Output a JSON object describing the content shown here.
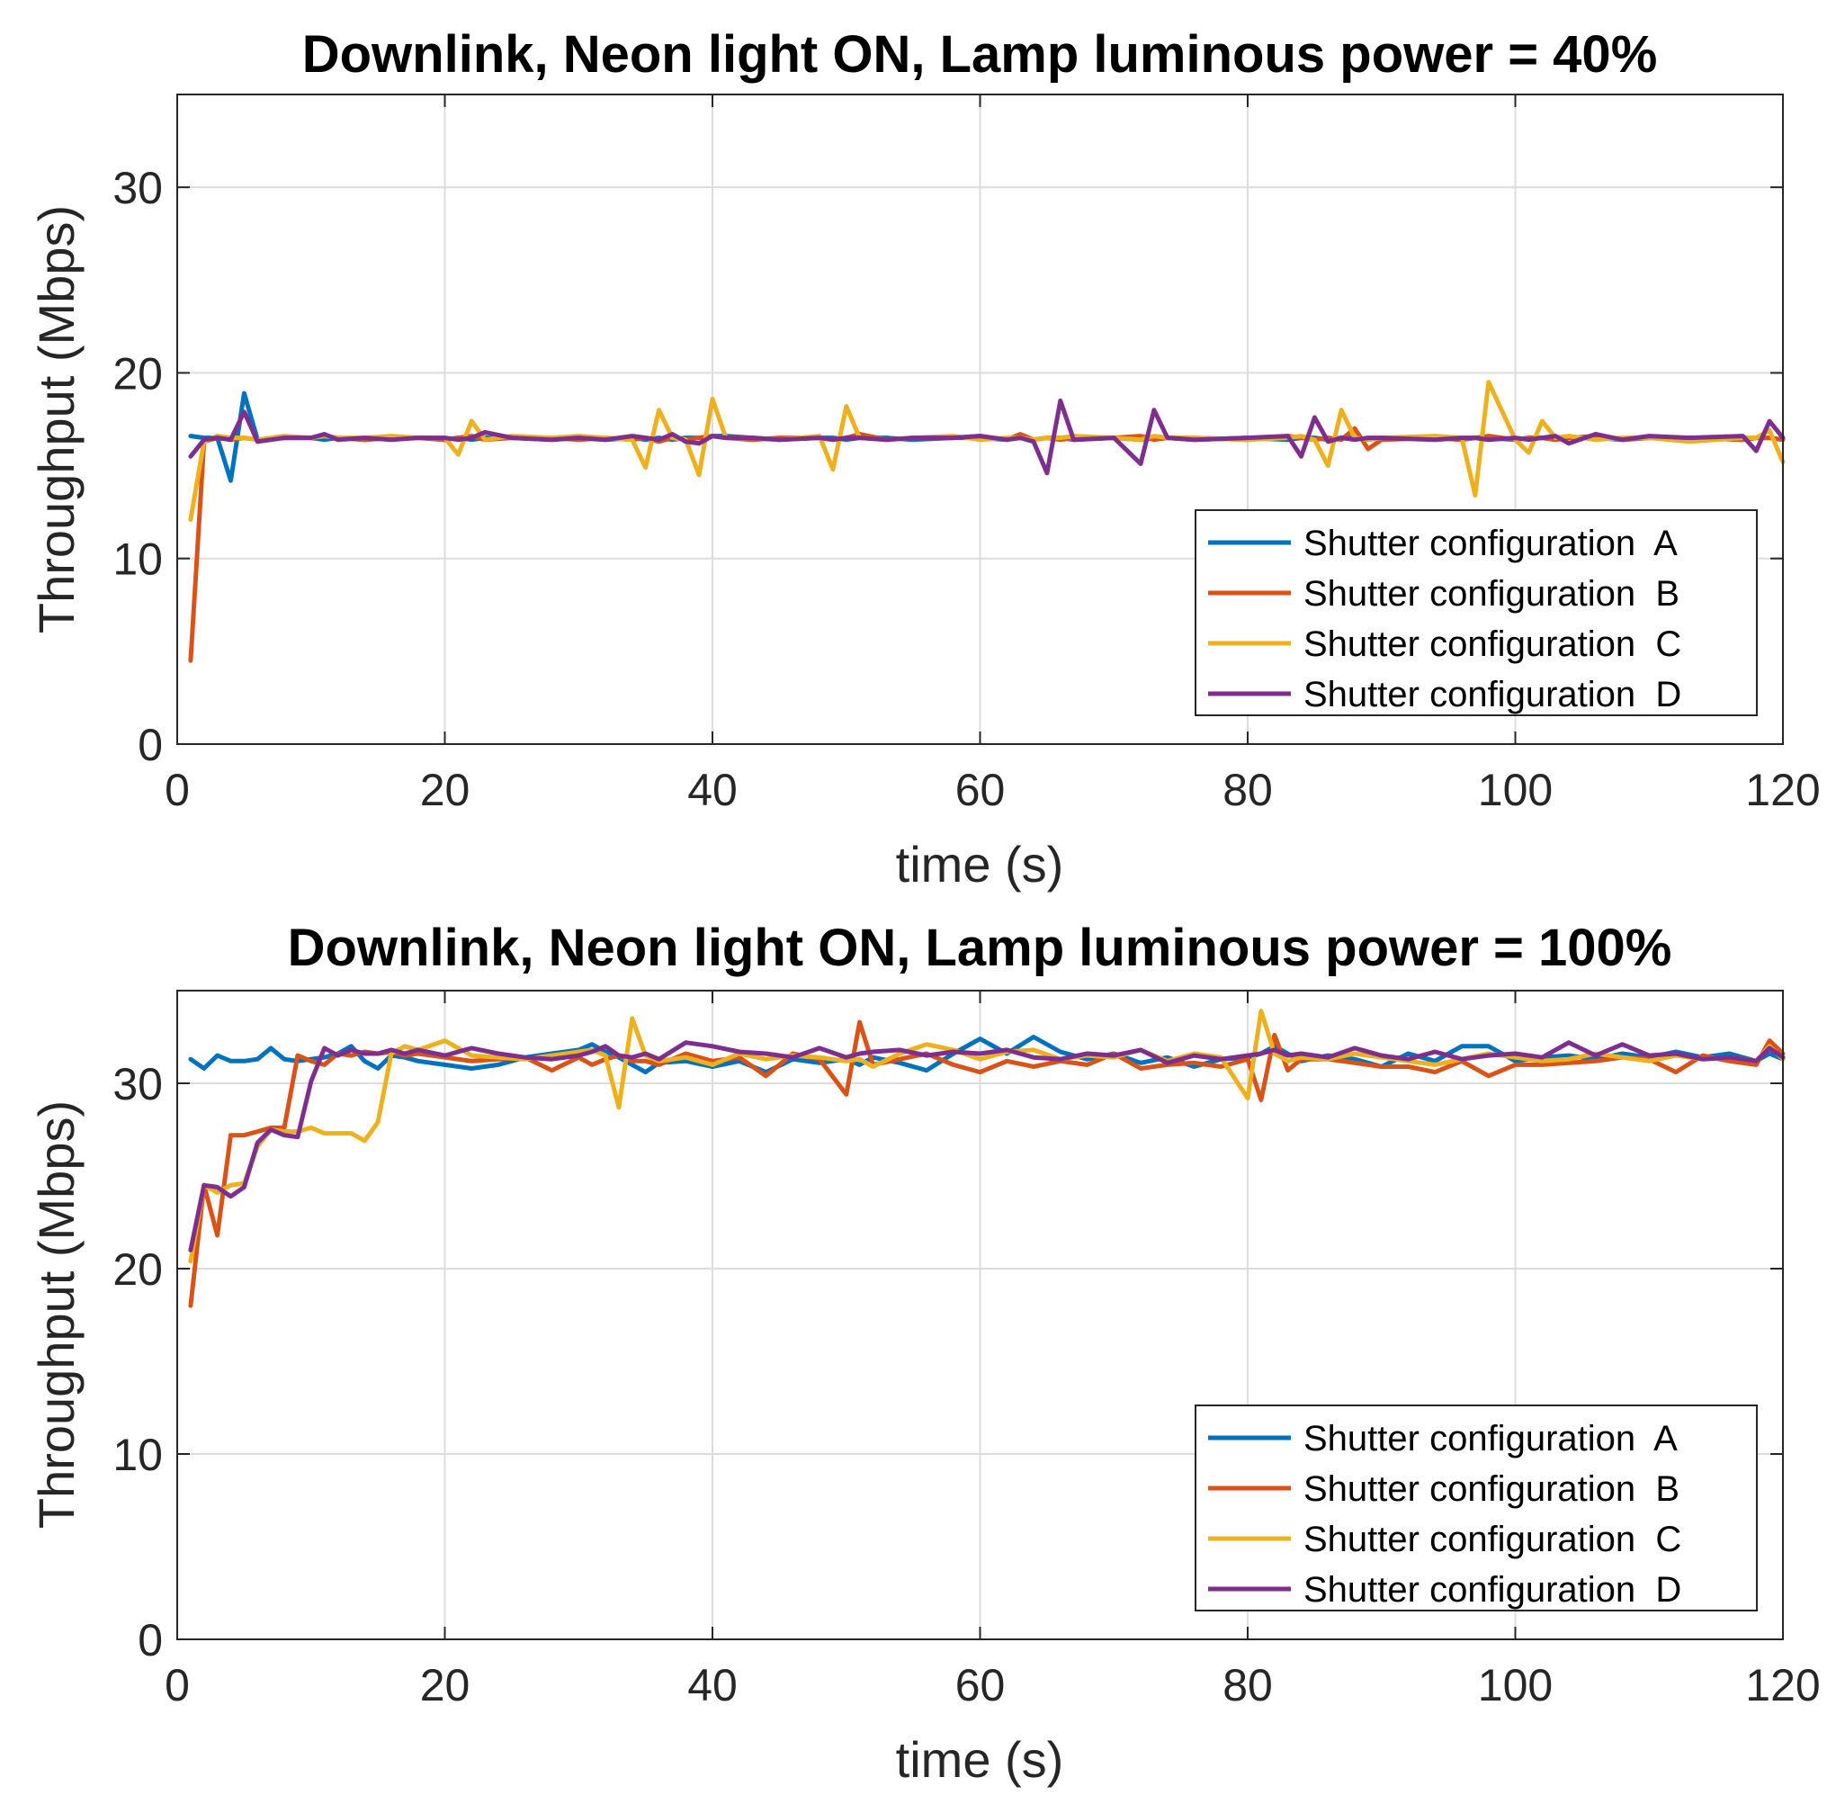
{
  "chart_data": [
    {
      "type": "line",
      "title": "Downlink, Neon light ON, Lamp luminous power =  40%",
      "xlabel": "time (s)",
      "ylabel": "Throughput (Mbps)",
      "xlim": [
        0,
        120
      ],
      "ylim": [
        0,
        35
      ],
      "xticks": [
        0,
        20,
        40,
        60,
        80,
        100,
        120
      ],
      "yticks": [
        0,
        10,
        20,
        30
      ],
      "grid": true,
      "legend_position": "bottom-right",
      "x": [
        1,
        2,
        3,
        4,
        5,
        6,
        8,
        10,
        11,
        12,
        14,
        16,
        18,
        20,
        21,
        22,
        23,
        25,
        28,
        30,
        32,
        34,
        35,
        36,
        37,
        38,
        39,
        40,
        41,
        43,
        45,
        48,
        49,
        50,
        51,
        53,
        55,
        58,
        60,
        62,
        63,
        64,
        65,
        66,
        67,
        70,
        72,
        73,
        74,
        76,
        80,
        83,
        84,
        85,
        86,
        87,
        88,
        89,
        90,
        94,
        96,
        97,
        98,
        100,
        101,
        102,
        103,
        104,
        106,
        108,
        110,
        113,
        117,
        118,
        119,
        120
      ],
      "series": [
        {
          "name": "Shutter configuration  A",
          "color": "#0072BD",
          "values": [
            16.6,
            16.5,
            16.5,
            14.2,
            18.9,
            16.4,
            16.5,
            16.5,
            16.4,
            16.5,
            16.4,
            16.5,
            16.5,
            16.4,
            16.5,
            16.4,
            16.5,
            16.5,
            16.4,
            16.5,
            16.4,
            16.5,
            16.4,
            16.5,
            16.4,
            16.5,
            16.5,
            16.6,
            16.6,
            16.5,
            16.4,
            16.5,
            16.5,
            16.4,
            16.5,
            16.5,
            16.4,
            16.5,
            16.5,
            16.4,
            16.5,
            16.4,
            16.5,
            16.5,
            16.4,
            16.5,
            16.4,
            16.5,
            16.5,
            16.4,
            16.5,
            16.4,
            16.5,
            16.5,
            16.4,
            16.5,
            16.5,
            16.4,
            16.5,
            16.5,
            16.4,
            16.5,
            16.5,
            16.4,
            16.5,
            16.5,
            16.4,
            16.5,
            16.5,
            16.4,
            16.5,
            16.5,
            16.4,
            16.5,
            16.5,
            16.4
          ]
        },
        {
          "name": "Shutter configuration  B",
          "color": "#D95319",
          "values": [
            4.5,
            16.3,
            16.5,
            16.4,
            16.5,
            16.4,
            16.5,
            16.5,
            16.6,
            16.5,
            16.4,
            16.5,
            16.5,
            16.4,
            16.5,
            16.6,
            16.4,
            16.5,
            16.5,
            16.4,
            16.5,
            16.4,
            16.5,
            16.3,
            16.5,
            16.4,
            16.5,
            16.6,
            16.5,
            16.4,
            16.5,
            16.5,
            16.4,
            16.5,
            16.7,
            16.4,
            16.5,
            16.5,
            16.6,
            16.4,
            16.7,
            16.4,
            16.5,
            16.4,
            16.5,
            16.5,
            16.6,
            16.4,
            16.5,
            16.5,
            16.4,
            16.6,
            16.5,
            16.4,
            16.5,
            16.4,
            17.0,
            15.9,
            16.4,
            16.5,
            16.4,
            16.5,
            16.6,
            16.4,
            16.5,
            16.5,
            16.4,
            16.5,
            16.6,
            16.4,
            16.5,
            16.5,
            16.4,
            16.5,
            16.5,
            16.4
          ]
        },
        {
          "name": "Shutter configuration  C",
          "color": "#EDB120",
          "values": [
            12.1,
            16.3,
            16.6,
            16.5,
            16.5,
            16.4,
            16.6,
            16.5,
            16.6,
            16.5,
            16.5,
            16.6,
            16.5,
            16.5,
            15.6,
            17.4,
            16.4,
            16.6,
            16.5,
            16.6,
            16.5,
            16.4,
            14.9,
            18.0,
            16.5,
            16.4,
            14.5,
            18.6,
            16.5,
            16.5,
            16.4,
            16.6,
            14.8,
            18.2,
            16.5,
            16.4,
            16.5,
            16.6,
            16.4,
            16.5,
            16.5,
            16.4,
            16.5,
            16.5,
            16.6,
            16.5,
            16.4,
            16.6,
            16.5,
            16.5,
            16.4,
            16.5,
            16.6,
            16.4,
            15.0,
            18.0,
            16.5,
            16.4,
            16.5,
            16.6,
            16.5,
            13.4,
            19.5,
            16.4,
            15.7,
            17.4,
            16.5,
            16.6,
            16.4,
            16.5,
            16.5,
            16.3,
            16.5,
            16.5,
            16.9,
            15.2
          ]
        },
        {
          "name": "Shutter configuration  D",
          "color": "#7E2F8E",
          "values": [
            15.5,
            16.4,
            16.5,
            16.4,
            17.9,
            16.3,
            16.5,
            16.5,
            16.7,
            16.4,
            16.5,
            16.4,
            16.5,
            16.5,
            16.4,
            16.5,
            16.8,
            16.5,
            16.4,
            16.5,
            16.4,
            16.6,
            16.5,
            16.4,
            16.7,
            16.3,
            16.2,
            16.6,
            16.5,
            16.5,
            16.4,
            16.5,
            16.4,
            16.5,
            16.5,
            16.4,
            16.5,
            16.5,
            16.6,
            16.4,
            16.5,
            16.3,
            14.6,
            18.5,
            16.4,
            16.5,
            15.1,
            18.0,
            16.5,
            16.4,
            16.5,
            16.6,
            15.5,
            17.6,
            16.3,
            16.5,
            16.4,
            16.5,
            16.5,
            16.4,
            16.5,
            16.5,
            16.4,
            16.5,
            16.4,
            16.5,
            16.6,
            16.2,
            16.7,
            16.4,
            16.6,
            16.5,
            16.6,
            15.8,
            17.4,
            16.5
          ]
        }
      ]
    },
    {
      "type": "line",
      "title": "Downlink, Neon light ON, Lamp luminous power =  100%",
      "xlabel": "time (s)",
      "ylabel": "Throughput (Mbps)",
      "xlim": [
        0,
        120
      ],
      "ylim": [
        0,
        35
      ],
      "xticks": [
        0,
        20,
        40,
        60,
        80,
        100,
        120
      ],
      "yticks": [
        0,
        10,
        20,
        30
      ],
      "grid": true,
      "legend_position": "bottom-right",
      "x": [
        1,
        2,
        3,
        4,
        5,
        6,
        7,
        8,
        9,
        10,
        11,
        12,
        13,
        14,
        15,
        16,
        17,
        18,
        20,
        22,
        24,
        26,
        28,
        30,
        31,
        32,
        33,
        34,
        35,
        36,
        38,
        40,
        42,
        44,
        46,
        48,
        50,
        51,
        52,
        54,
        56,
        58,
        60,
        62,
        64,
        66,
        68,
        70,
        72,
        74,
        76,
        78,
        80,
        81,
        82,
        83,
        84,
        86,
        88,
        90,
        92,
        94,
        96,
        98,
        100,
        102,
        104,
        106,
        108,
        110,
        112,
        114,
        116,
        118,
        119,
        120
      ],
      "series": [
        {
          "name": "Shutter configuration  A",
          "color": "#0072BD",
          "values": [
            31.3,
            30.8,
            31.5,
            31.2,
            31.2,
            31.3,
            31.9,
            31.3,
            31.2,
            31.3,
            31.4,
            31.6,
            32.0,
            31.2,
            30.8,
            31.5,
            31.4,
            31.2,
            31.0,
            30.8,
            31.0,
            31.4,
            31.6,
            31.8,
            32.1,
            31.7,
            31.4,
            31.0,
            30.6,
            31.1,
            31.2,
            30.9,
            31.2,
            30.6,
            31.3,
            31.1,
            31.3,
            31.0,
            31.4,
            31.1,
            30.7,
            31.6,
            32.4,
            31.6,
            32.5,
            31.7,
            31.3,
            31.6,
            31.1,
            31.4,
            30.9,
            31.3,
            31.4,
            31.6,
            32.0,
            31.6,
            31.2,
            31.5,
            31.3,
            30.9,
            31.6,
            31.2,
            32.0,
            32.0,
            31.2,
            31.4,
            31.5,
            31.3,
            31.6,
            31.4,
            31.7,
            31.4,
            31.6,
            31.2,
            31.6,
            31.3
          ]
        },
        {
          "name": "Shutter configuration  B",
          "color": "#D95319",
          "values": [
            18.0,
            24.5,
            21.8,
            27.2,
            27.2,
            27.4,
            27.6,
            27.6,
            31.5,
            31.2,
            31.0,
            31.6,
            31.5,
            31.7,
            31.6,
            31.7,
            31.5,
            31.6,
            31.4,
            31.2,
            31.3,
            31.4,
            30.7,
            31.4,
            31.0,
            31.3,
            31.5,
            31.2,
            31.2,
            31.0,
            31.6,
            31.2,
            31.4,
            30.4,
            31.6,
            31.3,
            29.4,
            33.3,
            31.0,
            31.3,
            31.6,
            31.0,
            30.6,
            31.2,
            30.9,
            31.2,
            31.0,
            31.6,
            30.8,
            31.0,
            31.1,
            30.9,
            31.3,
            29.1,
            32.6,
            30.7,
            31.3,
            31.3,
            31.1,
            30.9,
            30.9,
            30.6,
            31.2,
            30.4,
            31.0,
            31.0,
            31.1,
            31.2,
            31.4,
            31.3,
            30.6,
            31.5,
            31.2,
            31.0,
            32.3,
            31.6
          ]
        },
        {
          "name": "Shutter configuration  C",
          "color": "#EDB120",
          "values": [
            20.4,
            24.5,
            24.1,
            24.5,
            24.6,
            26.6,
            27.5,
            27.4,
            27.4,
            27.6,
            27.3,
            27.3,
            27.3,
            26.9,
            27.9,
            31.6,
            32.0,
            31.8,
            32.3,
            31.5,
            31.4,
            31.3,
            31.5,
            31.7,
            31.8,
            31.5,
            28.7,
            33.5,
            31.5,
            31.2,
            31.4,
            31.0,
            31.6,
            31.3,
            31.5,
            31.4,
            31.2,
            31.3,
            30.9,
            31.6,
            32.1,
            31.8,
            31.3,
            31.7,
            31.8,
            31.3,
            31.5,
            31.4,
            31.8,
            31.2,
            31.6,
            31.4,
            29.2,
            33.9,
            31.6,
            31.2,
            31.4,
            31.3,
            31.6,
            31.4,
            31.2,
            31.0,
            31.3,
            31.6,
            31.4,
            31.2,
            31.3,
            31.6,
            31.4,
            31.2,
            31.5,
            31.3,
            31.4,
            31.2,
            32.0,
            31.3
          ]
        },
        {
          "name": "Shutter configuration  D",
          "color": "#7E2F8E",
          "values": [
            21.0,
            24.5,
            24.4,
            23.9,
            24.4,
            26.8,
            27.5,
            27.2,
            27.1,
            30.1,
            31.9,
            31.5,
            31.8,
            31.6,
            31.6,
            31.8,
            31.6,
            31.8,
            31.5,
            31.9,
            31.6,
            31.4,
            31.3,
            31.5,
            31.7,
            32.0,
            31.5,
            31.4,
            31.6,
            31.3,
            32.2,
            32.0,
            31.7,
            31.6,
            31.4,
            31.9,
            31.4,
            31.6,
            31.7,
            31.8,
            31.5,
            31.7,
            31.6,
            31.8,
            31.4,
            31.3,
            31.6,
            31.5,
            31.8,
            31.1,
            31.5,
            31.3,
            31.5,
            31.6,
            31.8,
            31.5,
            31.6,
            31.4,
            31.9,
            31.5,
            31.3,
            31.7,
            31.3,
            31.5,
            31.6,
            31.4,
            32.2,
            31.5,
            32.1,
            31.5,
            31.6,
            31.3,
            31.4,
            31.2,
            31.9,
            31.4
          ]
        }
      ]
    }
  ]
}
